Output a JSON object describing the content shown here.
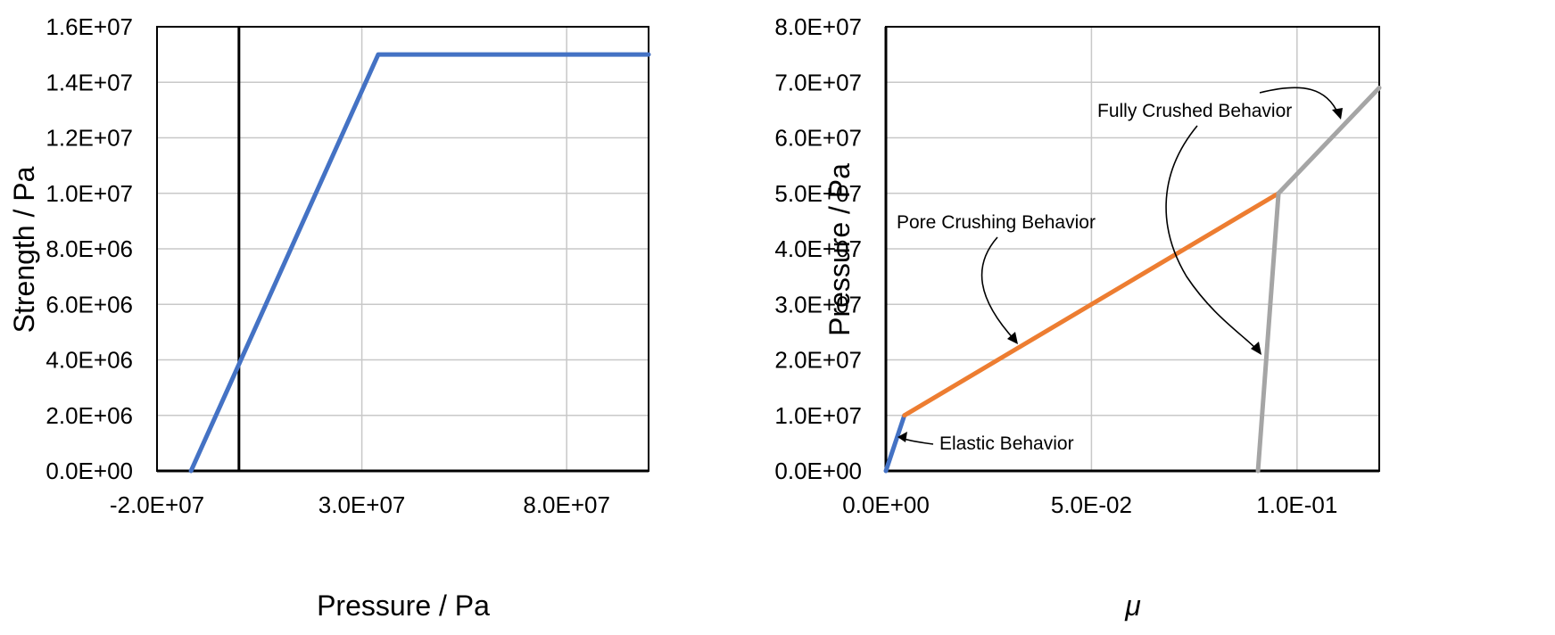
{
  "chart_data": [
    {
      "type": "line",
      "title": "",
      "xlabel": "Pressure / Pa",
      "ylabel": "Strength / Pa",
      "xlim": [
        -20000000,
        100000000
      ],
      "ylim": [
        0,
        16000000
      ],
      "grid": true,
      "xticks": [
        -20000000,
        30000000,
        80000000
      ],
      "xtick_labels": [
        "-2.0E+07",
        "3.0E+07",
        "8.0E+07"
      ],
      "yticks": [
        0,
        2000000,
        4000000,
        6000000,
        8000000,
        10000000,
        12000000,
        14000000,
        16000000
      ],
      "ytick_labels": [
        "0.0E+00",
        "2.0E+06",
        "4.0E+06",
        "6.0E+06",
        "8.0E+06",
        "1.0E+07",
        "1.2E+07",
        "1.4E+07",
        "1.6E+07"
      ],
      "vertical_line_x": 0,
      "series": [
        {
          "color": "#4472c4",
          "x": [
            -11700000,
            34000000,
            100000000
          ],
          "y": [
            0,
            15000000,
            15000000
          ]
        }
      ]
    },
    {
      "type": "line",
      "title": "",
      "xlabel": "μ",
      "ylabel": "Pressure / Pa",
      "xlim": [
        0,
        0.12
      ],
      "ylim": [
        0,
        80000000
      ],
      "grid": true,
      "xticks": [
        0,
        0.05,
        0.1
      ],
      "xtick_labels": [
        "0.0E+00",
        "5.0E-02",
        "1.0E-01"
      ],
      "yticks": [
        0,
        10000000,
        20000000,
        30000000,
        40000000,
        50000000,
        60000000,
        70000000,
        80000000
      ],
      "ytick_labels": [
        "0.0E+00",
        "1.0E+07",
        "2.0E+07",
        "3.0E+07",
        "4.0E+07",
        "5.0E+07",
        "6.0E+07",
        "7.0E+07",
        "8.0E+07"
      ],
      "series": [
        {
          "color": "#4472c4",
          "x": [
            0,
            0.0045
          ],
          "y": [
            0,
            10000000
          ]
        },
        {
          "color": "#ed7d31",
          "x": [
            0.0045,
            0.0955
          ],
          "y": [
            10000000,
            50000000
          ]
        },
        {
          "color": "#a5a5a5",
          "x": [
            0.0905,
            0.0955
          ],
          "y": [
            0,
            50000000
          ]
        },
        {
          "color": "#a5a5a5",
          "x": [
            0.0955,
            0.12
          ],
          "y": [
            50000000,
            69000000
          ]
        }
      ],
      "annotations": [
        "Fully Crushed Behavior",
        "Pore Crushing Behavior",
        "Elastic Behavior"
      ]
    }
  ]
}
